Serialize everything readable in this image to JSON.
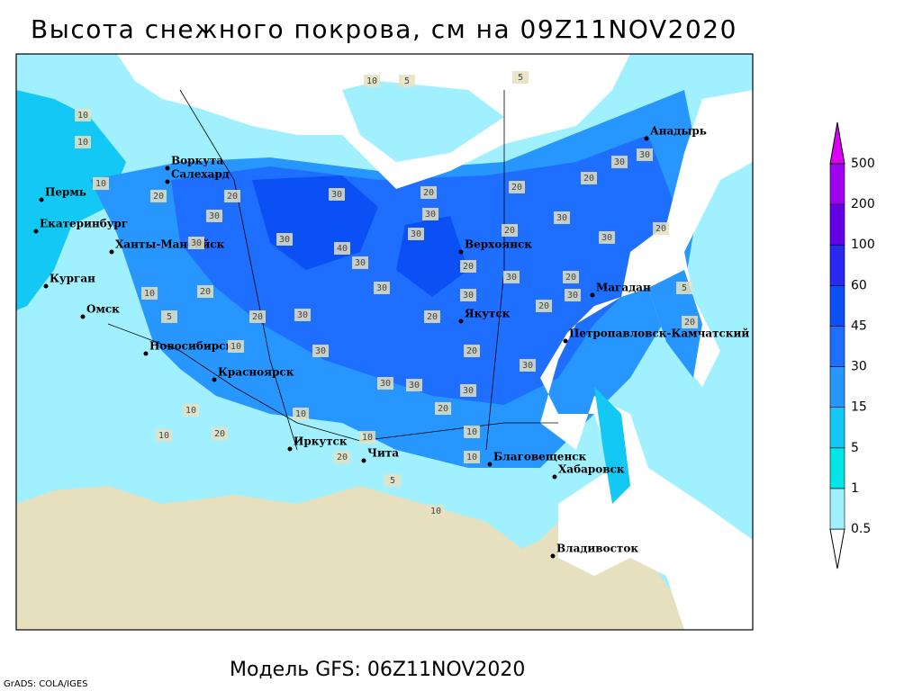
{
  "header": {
    "title": "Высота снежного покрова, см на 09Z11NOV2020"
  },
  "map": {
    "cities": [
      "Воркута",
      "Салехард",
      "Пермь",
      "Екатеринбург",
      "Ханты-Мансийск",
      "Курган",
      "Омск",
      "Новосибирск",
      "Красноярск",
      "Иркутск",
      "Чита",
      "Верхоянск",
      "Якутск",
      "Магадан",
      "Петропавловск-Камчатский",
      "Анадырь",
      "Благовещенск",
      "Хабаровск",
      "Владивосток"
    ],
    "contour_labels": [
      10,
      5,
      5,
      10,
      10,
      10,
      20,
      30,
      20,
      30,
      20,
      30,
      20,
      20,
      30,
      30,
      30,
      40,
      20,
      30,
      30,
      20,
      30,
      30,
      30,
      20,
      30,
      20,
      30,
      20,
      10,
      5,
      20,
      30,
      20,
      30,
      20,
      30,
      20,
      5,
      10,
      30,
      20,
      30,
      30,
      30,
      30,
      20,
      10,
      10,
      10,
      20,
      10,
      10,
      20,
      10,
      5,
      10
    ]
  },
  "legend": {
    "levels": [
      0.5,
      1,
      5,
      15,
      30,
      45,
      60,
      100,
      200,
      500
    ],
    "colors": [
      "#ffffff",
      "#a0f0ff",
      "#00e6e6",
      "#14c8f5",
      "#2896ff",
      "#1e6eff",
      "#0a50f5",
      "#2828f0",
      "#6400e6",
      "#a000f0",
      "#dc00f5"
    ]
  },
  "footer": {
    "model": "Модель GFS: 06Z11NOV2020",
    "credit": "GrADS: COLA/IGES"
  }
}
